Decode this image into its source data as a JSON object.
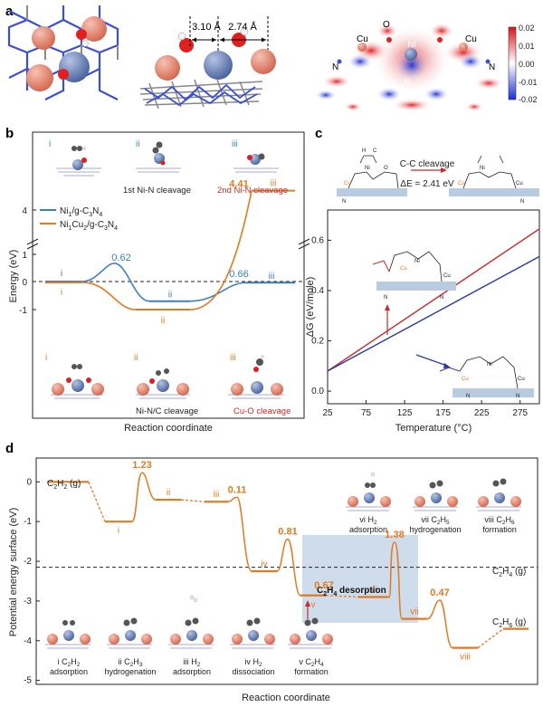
{
  "panel_labels": {
    "a": "a",
    "b": "b",
    "c": "c",
    "d": "d"
  },
  "colors": {
    "blue": "#3a7fc6",
    "orange": "#e27a1f",
    "red": "#cc2a2a",
    "navy": "#2b3aa0",
    "shade": "#b9cbe0",
    "cu": "#e8917a",
    "ni": "#6f86b8"
  },
  "panel_a": {
    "dist1": "3.10 Å",
    "dist2": "2.74 Å",
    "atom_labels": {
      "cu_left": "Cu",
      "o_top": "O",
      "ni": "Ni",
      "cu_right": "Cu",
      "n_left": "N",
      "n_bottom": "N",
      "c_label": "C",
      "n_right": "N"
    },
    "colorbar_ticks": [
      "0.02",
      "0.01",
      "0.00",
      "-0.01",
      "-0.02"
    ]
  },
  "chart_data": [
    {
      "type": "line",
      "panel": "b",
      "title": "",
      "xlabel": "Reaction coordinate",
      "ylabel": "Energy (eV)",
      "ylim": [
        -1.4,
        4.8
      ],
      "yticks": [
        "4",
        "1",
        "0",
        "-1"
      ],
      "break": "between 1 and 4",
      "series": [
        {
          "name": "Ni1/g-C3N4",
          "name_main": "Ni",
          "sub1": "1",
          "name_rest": "/g-C",
          "sub2": "3",
          "name_rest2": "N",
          "sub3": "4",
          "color": "#3a7fc6",
          "states": [
            {
              "label": "i",
              "value": 0
            },
            {
              "label": "TS",
              "value": 0.62
            },
            {
              "label": "ii",
              "value": -0.7
            },
            {
              "label": "iii",
              "value": -0.04
            }
          ],
          "labels_shown": [
            "i",
            "ii",
            "iii"
          ],
          "annotations": [
            "0.62",
            "0.66"
          ]
        },
        {
          "name": "Ni1Cu2/g-C3N4",
          "name_main": "Ni",
          "sub1": "1",
          "mid": "Cu",
          "subm": "2",
          "name_rest": "/g-C",
          "sub2": "3",
          "name_rest2": "N",
          "sub3": "4",
          "color": "#e27a1f",
          "states": [
            {
              "label": "i",
              "value": 0
            },
            {
              "label": "ii",
              "value": -1.0
            },
            {
              "label": "iii",
              "value": 4.41
            }
          ],
          "labels_shown": [
            "i",
            "ii",
            "iii"
          ],
          "annotations": [
            "4.41"
          ]
        }
      ],
      "top_captions": [
        "i",
        "ii",
        "iii",
        "1st Ni-N cleavage",
        "2nd Ni-N cleavage"
      ],
      "bottom_captions": [
        "i",
        "ii",
        "iii",
        "Ni-N/C cleavage",
        "Cu-O cleavage"
      ]
    },
    {
      "type": "line",
      "panel": "c",
      "xlabel": "Temperature (°C)",
      "ylabel": "ΔG (eV/mole)",
      "xlim": [
        25,
        300
      ],
      "ylim": [
        -0.05,
        0.72
      ],
      "xticks": [
        25,
        75,
        125,
        175,
        225,
        275
      ],
      "yticks": [
        0.0,
        0.2,
        0.4,
        0.6
      ],
      "series": [
        {
          "name": "red",
          "color": "#cc2a2a",
          "x": [
            25,
            300
          ],
          "y": [
            0.08,
            0.645
          ]
        },
        {
          "name": "blue",
          "color": "#2b3aa0",
          "x": [
            25,
            300
          ],
          "y": [
            0.08,
            0.535
          ]
        }
      ],
      "reaction_arrow": "C-C cleavage",
      "delta_e": "ΔE = 2.41 eV",
      "atom_text": {
        "c": "C",
        "h": "H",
        "ni": "Ni",
        "o": "O",
        "cu": "Cu",
        "n": "N"
      }
    },
    {
      "type": "line",
      "panel": "d",
      "xlabel": "Reaction coordinate",
      "ylabel": "Potential energy surface (eV)",
      "ylim": [
        -5.1,
        0.6
      ],
      "yticks": [
        0,
        -1,
        -2,
        -3,
        -4,
        -5
      ],
      "ref_line": {
        "value": -2.15,
        "label_main": "C",
        "label_sub1": "2",
        "label_mid": "H",
        "label_sub2": "4",
        "label_tail": " (g)"
      },
      "start_label": {
        "main": "C",
        "sub1": "2",
        "mid": "H",
        "sub2": "2",
        "tail": " (g)"
      },
      "end_label": {
        "main": "C",
        "sub1": "2",
        "mid": "H",
        "sub2": "6",
        "tail": " (g)"
      },
      "states": [
        {
          "label": "start",
          "value": 0.0
        },
        {
          "label": "i",
          "value": -1.0
        },
        {
          "label": "TS1",
          "value": 0.23
        },
        {
          "label": "ii",
          "value": -0.45
        },
        {
          "label": "iii",
          "value": -0.5
        },
        {
          "label": "TS2",
          "value": -0.39
        },
        {
          "label": "iv",
          "value": -2.25
        },
        {
          "label": "TS3",
          "value": -1.44
        },
        {
          "label": "v",
          "value": -2.86
        },
        {
          "label": "vi",
          "value": -2.9
        },
        {
          "label": "TS4",
          "value": -1.52
        },
        {
          "label": "vii",
          "value": -3.45
        },
        {
          "label": "TS5",
          "value": -2.98
        },
        {
          "label": "viii",
          "value": -4.18
        },
        {
          "label": "end",
          "value": -3.7
        }
      ],
      "barrier_labels": [
        "1.23",
        "0.11",
        "0.81",
        "1.38",
        "0.47"
      ],
      "bold_barrier": "0.67",
      "state_labels": [
        "i",
        "ii",
        "iii",
        "iv",
        "v",
        "vi",
        "vii",
        "viii"
      ],
      "desorption": {
        "main": "C",
        "sub1": "2",
        "mid": "H",
        "sub2": "4",
        "tail": " desorption"
      },
      "top_captions": [
        {
          "roman": "vi",
          "l1a": "H",
          "l1s": "2",
          "l1b": "",
          "l2": "adsorption"
        },
        {
          "roman": "vii",
          "l1a": "C",
          "l1s": "2",
          "l1b": "H",
          "l1s2": "5",
          "l2": "hydrogenation"
        },
        {
          "roman": "viii",
          "l1a": "C",
          "l1s": "2",
          "l1b": "H",
          "l1s2": "6",
          "l2": "formation"
        }
      ],
      "bottom_captions": [
        {
          "roman": "i",
          "l1a": "C",
          "l1s": "2",
          "l1b": "H",
          "l1s2": "2",
          "l2": "adsorption"
        },
        {
          "roman": "ii",
          "l1a": "C",
          "l1s": "2",
          "l1b": "H",
          "l1s2": "3",
          "l2": "hydrogenation"
        },
        {
          "roman": "iii",
          "l1a": "H",
          "l1s": "2",
          "l1b": "",
          "l2": "adsorption"
        },
        {
          "roman": "iv",
          "l1a": "H",
          "l1s": "2",
          "l1b": "",
          "l2": "dissociation"
        },
        {
          "roman": "v",
          "l1a": "C",
          "l1s": "2",
          "l1b": "H",
          "l1s2": "4",
          "l2": "formation"
        }
      ]
    }
  ]
}
